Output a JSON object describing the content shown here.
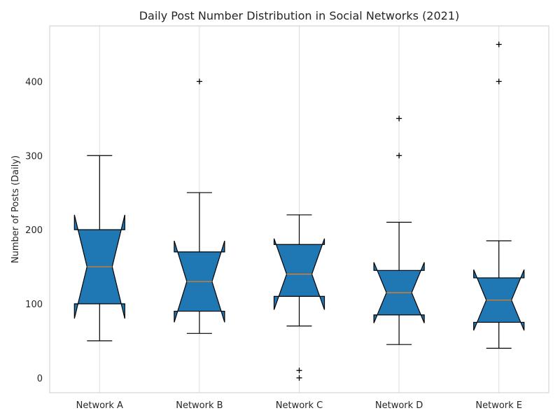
{
  "chart_data": {
    "type": "boxplot",
    "title": "Daily Post Number Distribution in Social Networks (2021)",
    "xlabel": "",
    "ylabel": "Number of Posts (Daily)",
    "ylim": [
      -20,
      475
    ],
    "yticks": [
      0,
      100,
      200,
      300,
      400
    ],
    "notched": true,
    "grid": "x-only",
    "box_color": "#1f77b4",
    "median_color": "#ff7f0e",
    "categories": [
      "Network A",
      "Network B",
      "Network C",
      "Network D",
      "Network E"
    ],
    "boxes": [
      {
        "name": "Network A",
        "whisker_low": 50,
        "q1": 100,
        "median": 150,
        "q3": 200,
        "whisker_high": 300,
        "notch_low": 80,
        "notch_high": 220,
        "outliers": []
      },
      {
        "name": "Network B",
        "whisker_low": 60,
        "q1": 90,
        "median": 130,
        "q3": 170,
        "whisker_high": 250,
        "notch_low": 75,
        "notch_high": 185,
        "outliers": [
          400
        ]
      },
      {
        "name": "Network C",
        "whisker_low": 70,
        "q1": 110,
        "median": 140,
        "q3": 180,
        "whisker_high": 220,
        "notch_low": 92,
        "notch_high": 188,
        "outliers": [
          0,
          10
        ]
      },
      {
        "name": "Network D",
        "whisker_low": 45,
        "q1": 85,
        "median": 115,
        "q3": 145,
        "whisker_high": 210,
        "notch_low": 74,
        "notch_high": 156,
        "outliers": [
          300,
          350
        ]
      },
      {
        "name": "Network E",
        "whisker_low": 40,
        "q1": 75,
        "median": 105,
        "q3": 135,
        "whisker_high": 185,
        "notch_low": 64,
        "notch_high": 146,
        "outliers": [
          400,
          450
        ]
      }
    ]
  }
}
